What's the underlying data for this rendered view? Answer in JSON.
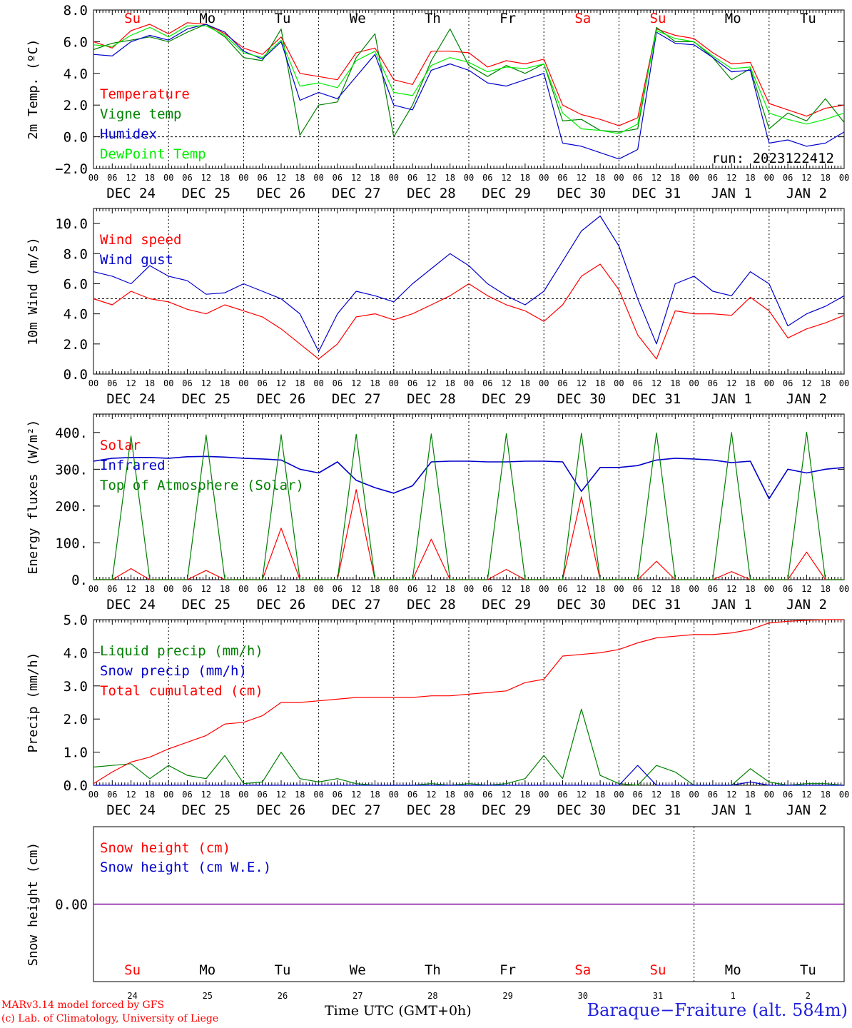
{
  "chart_data": [
    {
      "type": "line",
      "ylabel": "2m Temp. (ºC)",
      "yticks": [
        "8.0",
        "6.0",
        "4.0",
        "2.0",
        "0.0",
        "−2.0"
      ],
      "ylim": [
        -2,
        8
      ],
      "reference_line": 0,
      "annotation": "run: 2023122412",
      "day_labels": [
        "Su",
        "Mo",
        "Tu",
        "We",
        "Th",
        "Fr",
        "Sa",
        "Su",
        "Mo",
        "Tu"
      ],
      "day_label_colors": [
        "#ff0000",
        "#000000",
        "#000000",
        "#000000",
        "#000000",
        "#000000",
        "#ff0000",
        "#ff0000",
        "#000000",
        "#000000"
      ],
      "x_hours": [
        0,
        6,
        12,
        18,
        24,
        30,
        36,
        42,
        48,
        54,
        60,
        66,
        72,
        78,
        84,
        90,
        96,
        102,
        108,
        114,
        120,
        126,
        132,
        138,
        144,
        150,
        156,
        162,
        168,
        174,
        180,
        186,
        192,
        198,
        204,
        210,
        216,
        222,
        228,
        234,
        240
      ],
      "series": [
        {
          "name": "Temperature",
          "color": "#ff0000",
          "values": [
            6.0,
            5.6,
            6.7,
            7.1,
            6.5,
            7.2,
            7.1,
            6.5,
            5.6,
            5.2,
            6.3,
            4.0,
            3.8,
            3.6,
            5.3,
            5.6,
            3.6,
            3.3,
            5.4,
            5.4,
            5.3,
            4.4,
            4.8,
            4.6,
            4.9,
            2.0,
            1.4,
            1.1,
            0.7,
            1.2,
            6.8,
            6.4,
            6.2,
            5.3,
            4.6,
            4.7,
            2.1,
            1.7,
            1.3,
            1.8,
            2.0
          ]
        },
        {
          "name": "Vigne temp",
          "color": "#008000",
          "values": [
            5.5,
            5.9,
            6.1,
            6.3,
            6.0,
            6.6,
            7.1,
            6.3,
            5.0,
            4.8,
            6.8,
            0.1,
            2.0,
            2.2,
            5.0,
            6.5,
            0.0,
            2.0,
            4.8,
            6.8,
            4.5,
            3.8,
            4.5,
            4.0,
            4.6,
            1.0,
            1.1,
            0.4,
            0.3,
            0.5,
            6.9,
            6.0,
            6.0,
            5.0,
            3.6,
            4.3,
            0.5,
            1.5,
            1.0,
            2.4,
            0.9
          ]
        },
        {
          "name": "Humidex",
          "color": "#0000cc",
          "values": [
            5.2,
            5.1,
            6.0,
            6.4,
            6.1,
            6.8,
            7.1,
            6.6,
            5.4,
            4.9,
            6.0,
            2.3,
            2.8,
            2.4,
            3.8,
            5.2,
            2.0,
            1.7,
            4.2,
            4.6,
            4.2,
            3.4,
            3.2,
            3.6,
            4.0,
            -0.4,
            -0.6,
            -1.0,
            -1.4,
            -0.8,
            6.6,
            5.9,
            5.8,
            5.0,
            4.1,
            4.2,
            -0.4,
            -0.2,
            -0.6,
            -0.4,
            0.3
          ]
        },
        {
          "name": "DewPoint Temp",
          "color": "#00ee00",
          "values": [
            5.8,
            5.7,
            6.4,
            6.9,
            6.3,
            7.0,
            7.0,
            6.4,
            5.3,
            5.0,
            6.1,
            3.2,
            3.4,
            3.1,
            4.8,
            5.4,
            2.8,
            2.6,
            4.5,
            5.0,
            4.7,
            4.1,
            4.4,
            4.3,
            4.6,
            1.5,
            0.5,
            0.4,
            0.2,
            0.8,
            6.7,
            6.2,
            6.0,
            5.1,
            4.3,
            4.4,
            1.5,
            1.1,
            0.8,
            1.1,
            1.5
          ]
        }
      ],
      "x_tick_labels": [
        "00",
        "06",
        "12",
        "18"
      ],
      "date_labels": [
        "DEC 24",
        "DEC 25",
        "DEC 26",
        "DEC 27",
        "DEC 28",
        "DEC 29",
        "DEC 30",
        "DEC 31",
        "JAN  1",
        "JAN  2"
      ]
    },
    {
      "type": "line",
      "ylabel": "10m Wind (m/s)",
      "yticks": [
        "10.0",
        "8.0",
        "6.0",
        "4.0",
        "2.0",
        "0.0"
      ],
      "ylim": [
        0,
        11
      ],
      "reference_line": 5,
      "x_hours": [
        0,
        6,
        12,
        18,
        24,
        30,
        36,
        42,
        48,
        54,
        60,
        66,
        72,
        78,
        84,
        90,
        96,
        102,
        108,
        114,
        120,
        126,
        132,
        138,
        144,
        150,
        156,
        162,
        168,
        174,
        180,
        186,
        192,
        198,
        204,
        210,
        216,
        222,
        228,
        234,
        240
      ],
      "series": [
        {
          "name": "Wind speed",
          "color": "#ff0000",
          "values": [
            5.0,
            4.6,
            5.5,
            5.0,
            4.8,
            4.3,
            4.0,
            4.6,
            4.2,
            3.8,
            3.0,
            2.0,
            1.0,
            2.0,
            3.8,
            4.0,
            3.6,
            4.0,
            4.6,
            5.2,
            6.0,
            5.2,
            4.6,
            4.2,
            3.5,
            4.6,
            6.5,
            7.3,
            5.6,
            2.6,
            1.0,
            4.2,
            4.0,
            4.0,
            3.9,
            5.1,
            4.2,
            2.4,
            3.0,
            3.4,
            3.9
          ]
        },
        {
          "name": "Wind gust",
          "color": "#0000cc",
          "values": [
            6.8,
            6.5,
            6.0,
            7.2,
            6.5,
            6.2,
            5.3,
            5.4,
            6.0,
            5.5,
            5.0,
            4.0,
            1.5,
            4.0,
            5.5,
            5.2,
            4.8,
            6.0,
            7.0,
            8.0,
            7.2,
            6.0,
            5.2,
            4.6,
            5.5,
            7.5,
            9.5,
            10.5,
            8.5,
            5.0,
            2.0,
            6.0,
            6.5,
            5.5,
            5.2,
            6.8,
            6.0,
            3.2,
            4.0,
            4.5,
            5.2
          ]
        }
      ],
      "x_tick_labels": [
        "00",
        "06",
        "12",
        "18"
      ],
      "date_labels": [
        "DEC 24",
        "DEC 25",
        "DEC 26",
        "DEC 27",
        "DEC 28",
        "DEC 29",
        "DEC 30",
        "DEC 31",
        "JAN  1",
        "JAN  2"
      ]
    },
    {
      "type": "line",
      "ylabel": "Energy fluxes (W/m²)",
      "yticks": [
        "400.",
        "300.",
        "200.",
        "100.",
        "0."
      ],
      "ylim": [
        0,
        450
      ],
      "x_hours": [
        0,
        6,
        12,
        18,
        24,
        30,
        36,
        42,
        48,
        54,
        60,
        66,
        72,
        78,
        84,
        90,
        96,
        102,
        108,
        114,
        120,
        126,
        132,
        138,
        144,
        150,
        156,
        162,
        168,
        174,
        180,
        186,
        192,
        198,
        204,
        210,
        216,
        222,
        228,
        234,
        240
      ],
      "series": [
        {
          "name": "Solar",
          "color": "#ff0000",
          "values": [
            0,
            0,
            30,
            0,
            0,
            0,
            25,
            0,
            0,
            0,
            140,
            0,
            0,
            0,
            245,
            0,
            0,
            0,
            110,
            0,
            0,
            0,
            28,
            0,
            0,
            0,
            225,
            0,
            0,
            0,
            50,
            0,
            0,
            0,
            22,
            0,
            0,
            0,
            75,
            0,
            0
          ]
        },
        {
          "name": "Infrared",
          "color": "#0000cc",
          "values": [
            322,
            330,
            332,
            332,
            330,
            334,
            335,
            333,
            330,
            328,
            325,
            300,
            290,
            320,
            270,
            250,
            235,
            255,
            320,
            322,
            322,
            320,
            320,
            322,
            322,
            320,
            240,
            305,
            305,
            310,
            325,
            330,
            328,
            325,
            318,
            322,
            220,
            300,
            290,
            300,
            305
          ]
        },
        {
          "name": "Top of Atmosphere (Solar)",
          "color": "#008000",
          "values": [
            0,
            0,
            390,
            0,
            0,
            0,
            393,
            0,
            0,
            0,
            394,
            0,
            0,
            0,
            395,
            0,
            0,
            0,
            396,
            0,
            0,
            0,
            397,
            0,
            0,
            0,
            398,
            0,
            0,
            0,
            399,
            0,
            0,
            0,
            400,
            0,
            0,
            0,
            401,
            0,
            0
          ]
        }
      ],
      "x_tick_labels": [
        "00",
        "06",
        "12",
        "18"
      ],
      "date_labels": [
        "DEC 24",
        "DEC 25",
        "DEC 26",
        "DEC 27",
        "DEC 28",
        "DEC 29",
        "DEC 30",
        "DEC 31",
        "JAN  1",
        "JAN  2"
      ]
    },
    {
      "type": "line",
      "ylabel": "Precip (mm/h)",
      "yticks": [
        "5.0",
        "4.0",
        "3.0",
        "2.0",
        "1.0",
        "0.0"
      ],
      "ylim": [
        0,
        5
      ],
      "x_hours": [
        0,
        6,
        12,
        18,
        24,
        30,
        36,
        42,
        48,
        54,
        60,
        66,
        72,
        78,
        84,
        90,
        96,
        102,
        108,
        114,
        120,
        126,
        132,
        138,
        144,
        150,
        156,
        162,
        168,
        174,
        180,
        186,
        192,
        198,
        204,
        210,
        216,
        222,
        228,
        234,
        240
      ],
      "series": [
        {
          "name": "Liquid precip (mm/h)",
          "color": "#008000",
          "values": [
            0.55,
            0.6,
            0.65,
            0.2,
            0.6,
            0.3,
            0.2,
            0.9,
            0.05,
            0.1,
            1.0,
            0.2,
            0.1,
            0.2,
            0.05,
            0.0,
            0.0,
            0.0,
            0.05,
            0.0,
            0.05,
            0.0,
            0.05,
            0.2,
            0.9,
            0.2,
            2.3,
            0.3,
            0.05,
            0.0,
            0.6,
            0.4,
            0.0,
            0.0,
            0.0,
            0.5,
            0.1,
            0.0,
            0.05,
            0.05,
            0.0
          ]
        },
        {
          "name": "Snow precip (mm/h)",
          "color": "#0000cc",
          "values": [
            0,
            0,
            0,
            0,
            0,
            0,
            0,
            0,
            0,
            0,
            0,
            0,
            0,
            0,
            0,
            0,
            0,
            0,
            0,
            0,
            0,
            0,
            0,
            0,
            0,
            0,
            0,
            0,
            0,
            0.6,
            0,
            0,
            0,
            0,
            0,
            0.1,
            0,
            0,
            0,
            0,
            0
          ]
        },
        {
          "name": "Total cumulated (cm)",
          "color": "#ff0000",
          "values": [
            0.05,
            0.4,
            0.7,
            0.85,
            1.1,
            1.3,
            1.5,
            1.85,
            1.9,
            2.1,
            2.5,
            2.5,
            2.55,
            2.6,
            2.65,
            2.65,
            2.65,
            2.65,
            2.7,
            2.7,
            2.75,
            2.8,
            2.85,
            3.1,
            3.2,
            3.9,
            3.95,
            4.0,
            4.1,
            4.3,
            4.45,
            4.5,
            4.55,
            4.55,
            4.6,
            4.7,
            4.9,
            4.95,
            4.98,
            5.0,
            5.0
          ]
        }
      ],
      "x_tick_labels": [
        "00",
        "06",
        "12",
        "18"
      ],
      "date_labels": [
        "DEC 24",
        "DEC 25",
        "DEC 26",
        "DEC 27",
        "DEC 28",
        "DEC 29",
        "DEC 30",
        "DEC 31",
        "JAN  1",
        "JAN  2"
      ]
    },
    {
      "type": "line",
      "ylabel": "Snow height (cm)",
      "yticks": [
        "0.00"
      ],
      "series": [
        {
          "name": "Snow height (cm)",
          "color": "#ff0000",
          "values": [
            0,
            0
          ]
        },
        {
          "name": "Snow height (cm W.E.)",
          "color": "#0000cc",
          "values": [
            0,
            0
          ]
        }
      ],
      "day_labels": [
        "Su",
        "Mo",
        "Tu",
        "We",
        "Th",
        "Fr",
        "Sa",
        "Su",
        "Mo",
        "Tu"
      ],
      "day_label_colors": [
        "#ff0000",
        "#000000",
        "#000000",
        "#000000",
        "#000000",
        "#000000",
        "#ff0000",
        "#ff0000",
        "#000000",
        "#000000"
      ],
      "day_numbers": [
        "24",
        "25",
        "26",
        "27",
        "28",
        "29",
        "30",
        "31",
        "1",
        "2"
      ]
    }
  ],
  "footer": {
    "credit_line1": "MARv3.14 model forced by GFS",
    "credit_line2": "(c) Lab. of Climatology, University of Liege",
    "xlabel": "Time UTC (GMT+0h)",
    "station": "Baraque−Fraiture (alt. 584m)"
  }
}
